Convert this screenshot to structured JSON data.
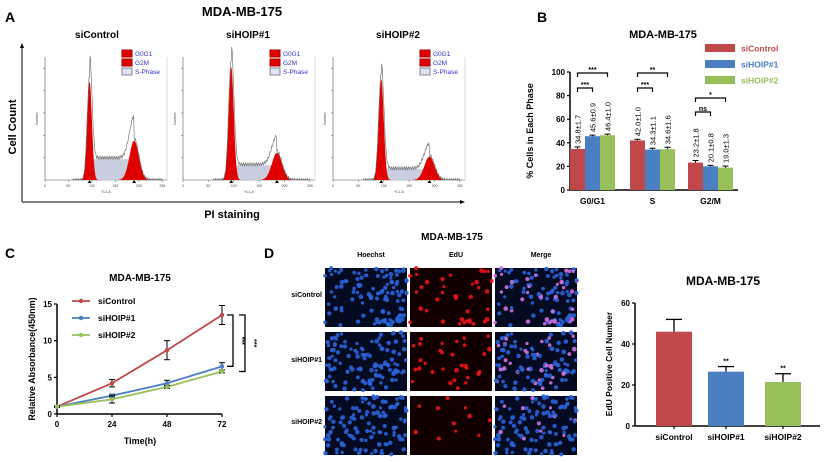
{
  "figure_title": "MDA-MB-175",
  "panel_letters": [
    "A",
    "B",
    "C",
    "D"
  ],
  "colors": {
    "siControl": "#c0474a",
    "siHOIP#1": "#4a7fc1",
    "siHOIP#2": "#98c05a",
    "flow_fill": "#e00000",
    "flow_s": "#c8cde0",
    "flow_legend_text": "#3333cc"
  },
  "chart_data": [
    {
      "id": "A",
      "type": "area",
      "title": "MDA-MB-175",
      "xlabel": "PI staining",
      "ylabel": "Cell Count",
      "panel_xlabel": "YL1-A",
      "panel_ylabel": "Number",
      "x_ticks": [
        0,
        50,
        100,
        150,
        200,
        250
      ],
      "legend": [
        "G0G1",
        "G2M",
        "S-Phase"
      ],
      "panels": [
        {
          "title": "siControl",
          "g0g1_center": 95,
          "g2m_center": 190,
          "g0g1_height": 0.8,
          "g2m_height": 0.32,
          "s_level": 0.17
        },
        {
          "title": "siHOIP#1",
          "g0g1_center": 95,
          "g2m_center": 185,
          "g0g1_height": 0.92,
          "g2m_height": 0.22,
          "s_level": 0.12
        },
        {
          "title": "siHOIP#2",
          "g0g1_center": 95,
          "g2m_center": 190,
          "g0g1_height": 0.82,
          "g2m_height": 0.19,
          "s_level": 0.09
        }
      ]
    },
    {
      "id": "B",
      "type": "bar",
      "title": "MDA-MB-175",
      "ylabel": "% Cells in Each Phase",
      "categories": [
        "G0/G1",
        "S",
        "G2/M"
      ],
      "ylim": [
        0,
        100
      ],
      "y_ticks": [
        0,
        20,
        40,
        60,
        80,
        100
      ],
      "legend_position": "top-right",
      "series": [
        {
          "name": "siControl",
          "values": [
            34.8,
            42.0,
            23.2
          ],
          "errors": [
            1.7,
            1.0,
            1.8
          ],
          "labels": [
            "34.8±1.7",
            "42.0±1.0",
            "23.2±1.8"
          ]
        },
        {
          "name": "siHOIP#1",
          "values": [
            45.6,
            34.3,
            20.1
          ],
          "errors": [
            0.9,
            1.1,
            0.8
          ],
          "labels": [
            "45.6±0.9",
            "34.3±1.1",
            "20.1±0.8"
          ]
        },
        {
          "name": "siHOIP#2",
          "values": [
            46.4,
            34.6,
            19.0
          ],
          "errors": [
            1.0,
            1.6,
            1.3
          ],
          "labels": [
            "46.4±1.0",
            "34.6±1.6",
            "19.0±1.3"
          ]
        }
      ],
      "significance": [
        {
          "category": "G0/G1",
          "pair": [
            "siControl",
            "siHOIP#1"
          ],
          "label": "***"
        },
        {
          "category": "G0/G1",
          "pair": [
            "siControl",
            "siHOIP#2"
          ],
          "label": "***"
        },
        {
          "category": "S",
          "pair": [
            "siControl",
            "siHOIP#1"
          ],
          "label": "***"
        },
        {
          "category": "S",
          "pair": [
            "siControl",
            "siHOIP#2"
          ],
          "label": "**"
        },
        {
          "category": "G2/M",
          "pair": [
            "siControl",
            "siHOIP#1"
          ],
          "label": "ns"
        },
        {
          "category": "G2/M",
          "pair": [
            "siControl",
            "siHOIP#2"
          ],
          "label": "*"
        }
      ]
    },
    {
      "id": "C",
      "type": "line",
      "title": "MDA-MB-175",
      "xlabel": "Time(h)",
      "ylabel": "Relative Absorbance(450nm)",
      "x": [
        0,
        24,
        48,
        72
      ],
      "xlim": [
        0,
        72
      ],
      "ylim": [
        0,
        15
      ],
      "y_ticks": [
        0,
        5,
        10,
        15
      ],
      "legend_position": "top-left",
      "series": [
        {
          "name": "siControl",
          "values": [
            1.0,
            4.2,
            8.7,
            13.5
          ],
          "errors": [
            0.1,
            0.5,
            1.3,
            1.3
          ]
        },
        {
          "name": "siHOIP#1",
          "values": [
            1.0,
            2.5,
            4.2,
            6.5
          ],
          "errors": [
            0.1,
            0.2,
            0.4,
            0.5
          ]
        },
        {
          "name": "siHOIP#2",
          "values": [
            1.0,
            2.0,
            3.7,
            5.8
          ],
          "errors": [
            0.1,
            0.5,
            0.2,
            0.2
          ]
        }
      ],
      "significance": [
        {
          "pair": [
            "siControl",
            "siHOIP#1"
          ],
          "label": "***"
        },
        {
          "pair": [
            "siControl",
            "siHOIP#2"
          ],
          "label": "***"
        }
      ]
    },
    {
      "id": "D",
      "type": "bar",
      "title": "MDA-MB-175",
      "ylabel": "EdU Positive Cell Number",
      "categories": [
        "siControl",
        "siHOIP#1",
        "siHOIP#2"
      ],
      "values": [
        46,
        26.5,
        21.5
      ],
      "errors": [
        6,
        2.5,
        4
      ],
      "significance": [
        "",
        "**",
        "**"
      ],
      "ylim": [
        0,
        60
      ],
      "y_ticks": [
        0,
        20,
        40,
        60
      ]
    }
  ],
  "microscopy": {
    "title": "MDA-MB-175",
    "columns": [
      "Hoechst",
      "EdU",
      "Merge"
    ],
    "rows": [
      "siControl",
      "siHOIP#1",
      "siHOIP#2"
    ]
  }
}
